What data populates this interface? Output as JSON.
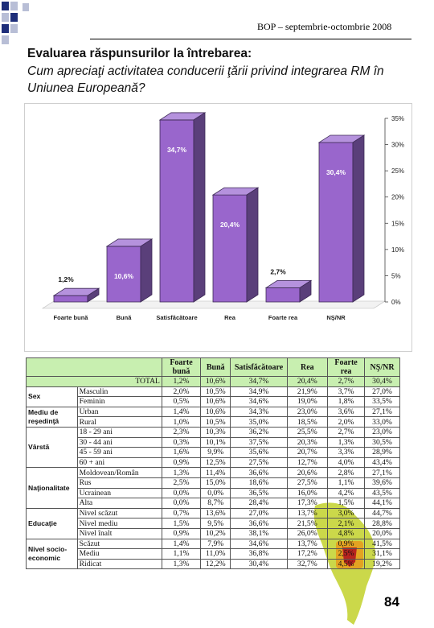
{
  "header": {
    "text": "BOP – septembrie-octombrie 2008"
  },
  "title": "Evaluarea răspunsurilor la întrebarea:",
  "subtitle": "Cum apreciaţi activitatea conducerii ţării privind integrarea RM în Uniunea Europeană?",
  "colors": {
    "bar": "#9966cc",
    "bar_top": "#b592dd",
    "bar_side": "#5a3f7a",
    "table_header": "#c8efb0"
  },
  "chart_data": {
    "type": "bar",
    "categories": [
      "Foarte bună",
      "Bună",
      "Satisfăcătoare",
      "Rea",
      "Foarte rea",
      "NŞ/NR"
    ],
    "values": [
      1.2,
      10.6,
      34.7,
      20.4,
      2.7,
      30.4
    ],
    "value_labels": [
      "1,2%",
      "10,6%",
      "34,7%",
      "20,4%",
      "2,7%",
      "30,4%"
    ],
    "y_ticks": [
      "0%",
      "5%",
      "10%",
      "15%",
      "20%",
      "25%",
      "30%",
      "35%"
    ],
    "ylim": [
      0,
      35
    ],
    "grid": false,
    "style": "3d"
  },
  "table": {
    "columns": [
      "Foarte bună",
      "Bună",
      "Satisfăcătoare",
      "Rea",
      "Foarte rea",
      "NŞ/NR"
    ],
    "total": {
      "label": "TOTAL",
      "values": [
        "1,2%",
        "10,6%",
        "34,7%",
        "20,4%",
        "2,7%",
        "30,4%"
      ]
    },
    "groups": [
      {
        "name": "Sex",
        "rows": [
          {
            "label": "Masculin",
            "values": [
              "2,0%",
              "10,5%",
              "34,9%",
              "21,9%",
              "3,7%",
              "27,0%"
            ]
          },
          {
            "label": "Feminin",
            "values": [
              "0,5%",
              "10,6%",
              "34,6%",
              "19,0%",
              "1,8%",
              "33,5%"
            ]
          }
        ]
      },
      {
        "name": "Mediu de reşedinţă",
        "rows": [
          {
            "label": "Urban",
            "values": [
              "1,4%",
              "10,6%",
              "34,3%",
              "23,0%",
              "3,6%",
              "27,1%"
            ]
          },
          {
            "label": "Rural",
            "values": [
              "1,0%",
              "10,5%",
              "35,0%",
              "18,5%",
              "2,0%",
              "33,0%"
            ]
          }
        ]
      },
      {
        "name": "Vârstă",
        "rows": [
          {
            "label": "18 - 29 ani",
            "values": [
              "2,3%",
              "10,3%",
              "36,2%",
              "25,5%",
              "2,7%",
              "23,0%"
            ]
          },
          {
            "label": "30 - 44 ani",
            "values": [
              "0,3%",
              "10,1%",
              "37,5%",
              "20,3%",
              "1,3%",
              "30,5%"
            ]
          },
          {
            "label": "45 - 59 ani",
            "values": [
              "1,6%",
              "9,9%",
              "35,6%",
              "20,7%",
              "3,3%",
              "28,9%"
            ]
          },
          {
            "label": "60 + ani",
            "values": [
              "0,9%",
              "12,5%",
              "27,5%",
              "12,7%",
              "4,0%",
              "43,4%"
            ]
          }
        ]
      },
      {
        "name": "Naţionalitate",
        "rows": [
          {
            "label": "Moldovean/Român",
            "values": [
              "1,3%",
              "11,4%",
              "36,6%",
              "20,6%",
              "2,8%",
              "27,1%"
            ]
          },
          {
            "label": "Rus",
            "values": [
              "2,5%",
              "15,0%",
              "18,6%",
              "27,5%",
              "1,1%",
              "39,6%"
            ]
          },
          {
            "label": "Ucrainean",
            "values": [
              "0,0%",
              "0,0%",
              "36,5%",
              "16,0%",
              "4,2%",
              "43,5%"
            ]
          },
          {
            "label": "Alta",
            "values": [
              "0,0%",
              "8,7%",
              "28,4%",
              "17,3%",
              "1,5%",
              "44,1%"
            ]
          }
        ]
      },
      {
        "name": "Educaţie",
        "rows": [
          {
            "label": "Nivel scăzut",
            "values": [
              "0,7%",
              "13,6%",
              "27,0%",
              "13,7%",
              "3,0%",
              "44,7%"
            ]
          },
          {
            "label": "Nivel mediu",
            "values": [
              "1,5%",
              "9,5%",
              "36,6%",
              "21,5%",
              "2,1%",
              "28,8%"
            ]
          },
          {
            "label": "Nivel înalt",
            "values": [
              "0,9%",
              "10,2%",
              "38,1%",
              "26,0%",
              "4,8%",
              "20,0%"
            ]
          }
        ]
      },
      {
        "name": "Nivel socio-economic",
        "rows": [
          {
            "label": "Scăzut",
            "values": [
              "1,4%",
              "7,9%",
              "34,6%",
              "13,7%",
              "0,9%",
              "41,5%"
            ]
          },
          {
            "label": "Mediu",
            "values": [
              "1,1%",
              "11,0%",
              "36,8%",
              "17,2%",
              "2,5%",
              "31,1%"
            ]
          },
          {
            "label": "Ridicat",
            "values": [
              "1,3%",
              "12,2%",
              "30,4%",
              "32,7%",
              "4,5%",
              "19,2%"
            ]
          }
        ]
      }
    ]
  },
  "page_number": "84"
}
